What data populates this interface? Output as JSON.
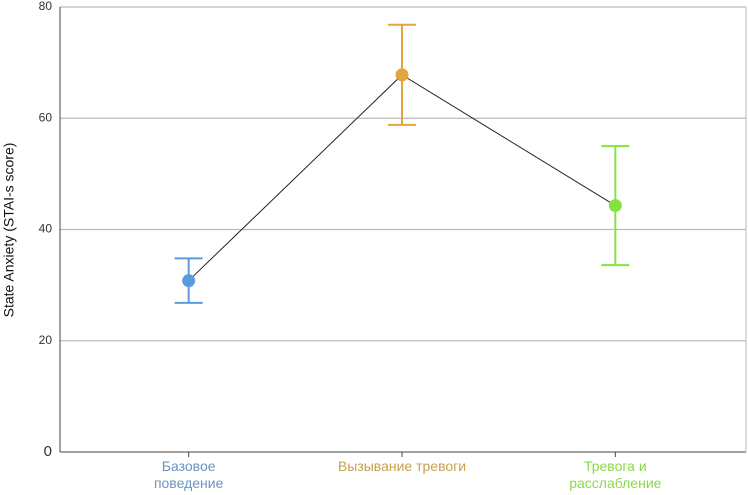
{
  "chart_data": {
    "type": "line",
    "y_label": "State Anxiety (STAI-s score)",
    "categories": [
      "Базовое\nповедение",
      "Вызывание тревоги",
      "Тревога и\nрасслабление"
    ],
    "series": [
      {
        "values": [
          30.8,
          67.8,
          44.3
        ],
        "errors": [
          4,
          9,
          10.7
        ],
        "colors": [
          "#5b9bdd",
          "#e3a63d",
          "#86e33f"
        ],
        "label_colors": [
          "#6b93c2",
          "#c9a04c",
          "#8cd94a"
        ],
        "line_color": "#222222"
      }
    ],
    "ylim": [
      0,
      80
    ],
    "yticks": [
      0,
      20,
      40,
      60,
      80
    ],
    "grid": true
  }
}
